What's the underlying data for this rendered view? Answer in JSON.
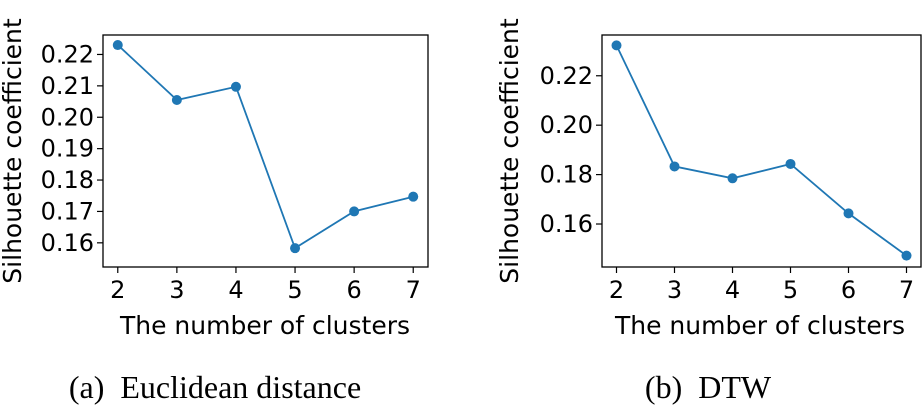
{
  "color": "#1f77b4",
  "chart_data": [
    {
      "type": "line",
      "caption": "(a)  Euclidean distance",
      "xlabel": "The number of clusters",
      "ylabel": "Silhouette coefficient",
      "x": [
        2,
        3,
        4,
        5,
        6,
        7
      ],
      "values": [
        0.223,
        0.2055,
        0.2097,
        0.1583,
        0.17,
        0.1747
      ],
      "xlim": [
        1.75,
        7.25
      ],
      "ylim": [
        0.1523,
        0.2262
      ],
      "xticks": [
        "2",
        "3",
        "4",
        "5",
        "6",
        "7"
      ],
      "yticks": [
        0.16,
        0.17,
        0.18,
        0.19,
        0.2,
        0.21,
        0.22
      ],
      "yticklabels": [
        "0.16",
        "0.17",
        "0.18",
        "0.19",
        "0.20",
        "0.21",
        "0.22"
      ]
    },
    {
      "type": "line",
      "caption": "(b)  DTW",
      "xlabel": "The number of clusters",
      "ylabel": "Silhouette coefficient",
      "x": [
        2,
        3,
        4,
        5,
        6,
        7
      ],
      "values": [
        0.2323,
        0.1833,
        0.1785,
        0.1843,
        0.1643,
        0.1472
      ],
      "xlim": [
        1.75,
        7.25
      ],
      "ylim": [
        0.1426,
        0.2365
      ],
      "xticks": [
        "2",
        "3",
        "4",
        "5",
        "6",
        "7"
      ],
      "yticks": [
        0.16,
        0.18,
        0.2,
        0.22
      ],
      "yticklabels": [
        "0.16",
        "0.18",
        "0.20",
        "0.22"
      ]
    }
  ]
}
